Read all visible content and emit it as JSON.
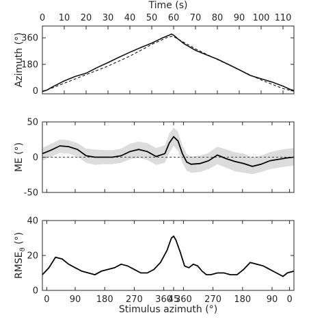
{
  "chart_data": [
    {
      "type": "line",
      "panel": "azimuth",
      "ylabel": "Azimuth (°)",
      "top_xlabel": "Time (s)",
      "top_xlim": [
        0,
        115
      ],
      "top_xticks": [
        "0",
        "10",
        "20",
        "30",
        "40",
        "50",
        "60",
        "70",
        "80",
        "90",
        "100",
        "110"
      ],
      "ylim": [
        -20,
        440
      ],
      "yticks": [
        "0",
        "180",
        "360"
      ],
      "grid": false,
      "series": [
        {
          "style": "solid",
          "x": [
            0,
            2,
            5,
            10,
            15,
            20,
            25,
            30,
            35,
            40,
            45,
            50,
            55,
            58,
            59,
            60,
            62,
            65,
            70,
            75,
            80,
            85,
            90,
            95,
            100,
            105,
            110,
            113,
            115
          ],
          "y": [
            -3,
            5,
            30,
            68,
            98,
            120,
            158,
            192,
            228,
            262,
            294,
            324,
            360,
            378,
            385,
            378,
            352,
            318,
            275,
            245,
            215,
            180,
            143,
            105,
            82,
            60,
            32,
            12,
            2
          ]
        },
        {
          "style": "dashed",
          "x": [
            0,
            10,
            20,
            30,
            40,
            50,
            57,
            59,
            60,
            65,
            70,
            80,
            90,
            100,
            110,
            115
          ],
          "y": [
            -6,
            52,
            110,
            168,
            236,
            315,
            362,
            370,
            368,
            327,
            285,
            213,
            143,
            74,
            16,
            -2
          ]
        }
      ]
    },
    {
      "type": "area",
      "panel": "me",
      "ylabel": "ME (°)",
      "ylim": [
        -50,
        50
      ],
      "yticks": [
        "-50",
        "0",
        "50"
      ],
      "grid": false,
      "reference_line": 0,
      "x": [
        0,
        4,
        8,
        12,
        16,
        20,
        24,
        28,
        32,
        36,
        40,
        44,
        48,
        52,
        56,
        58,
        60,
        62,
        64,
        66,
        68,
        72,
        76,
        80,
        84,
        88,
        92,
        96,
        100,
        104,
        108,
        112,
        115
      ],
      "mean": [
        5,
        10,
        16,
        15,
        11,
        2,
        0,
        0,
        0,
        2,
        8,
        11,
        8,
        1,
        5,
        20,
        29,
        23,
        5,
        -7,
        -10,
        -9,
        -5,
        3,
        -2,
        -6,
        -9,
        -13,
        -10,
        -5,
        -3,
        -1,
        0
      ],
      "band_lower": [
        -5,
        1,
        6,
        5,
        1,
        -8,
        -11,
        -10,
        -10,
        -8,
        -3,
        -1,
        -4,
        -11,
        -8,
        6,
        16,
        9,
        -8,
        -19,
        -22,
        -21,
        -17,
        -10,
        -15,
        -20,
        -22,
        -24,
        -21,
        -17,
        -15,
        -13,
        -12
      ],
      "band_upper": [
        13,
        19,
        25,
        24,
        20,
        12,
        11,
        10,
        10,
        12,
        19,
        22,
        20,
        13,
        17,
        33,
        42,
        36,
        17,
        4,
        1,
        2,
        6,
        15,
        11,
        7,
        5,
        0,
        2,
        7,
        10,
        12,
        13
      ]
    },
    {
      "type": "line",
      "panel": "rmse",
      "ylabel": "RMSE",
      "ylabel_subscript": "ϑ",
      "ylabel_unit": " (°)",
      "ylim": [
        0,
        40
      ],
      "yticks": [
        "0",
        "20",
        "40"
      ],
      "xlabel": "Stimulus azimuth (°)",
      "xticks": [
        "0",
        "90",
        "180",
        "270",
        "360",
        "45",
        "360",
        "270",
        "180",
        "90",
        "0"
      ],
      "grid": false,
      "x": [
        0,
        3,
        6,
        9,
        12,
        15,
        18,
        21,
        24,
        27,
        30,
        33,
        36,
        39,
        42,
        45,
        48,
        51,
        54,
        57,
        59,
        60,
        61,
        63,
        65,
        67,
        69,
        71,
        73,
        75,
        77,
        80,
        83,
        86,
        89,
        92,
        95,
        98,
        101,
        104,
        107,
        110,
        112,
        115
      ],
      "values": [
        9,
        13,
        19,
        18,
        15,
        13,
        11,
        10,
        9,
        11,
        12,
        13,
        15,
        14,
        12,
        10,
        10,
        12,
        16,
        23,
        30,
        31,
        29,
        22,
        14,
        13,
        15,
        14,
        11,
        9,
        9,
        10,
        10,
        9,
        9,
        12,
        16,
        15,
        14,
        12,
        10,
        8,
        10,
        11
      ]
    }
  ]
}
